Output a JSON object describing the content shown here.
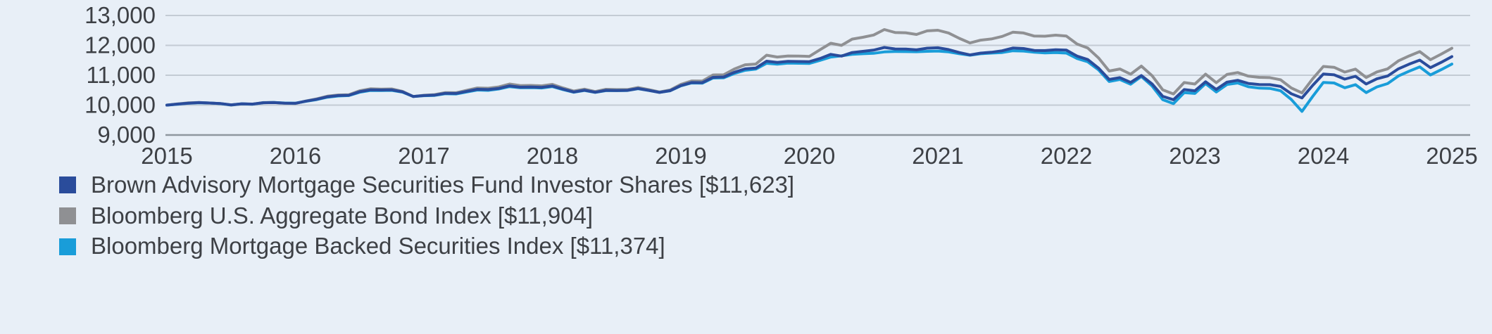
{
  "colors": {
    "background": "#e8eff7",
    "text": "#3d4045",
    "grid": "#c3cbd4",
    "axis": "#8f979f"
  },
  "chart_data": {
    "type": "line",
    "title": "",
    "xlabel": "",
    "ylabel": "",
    "grid": "horizontal",
    "legend_position": "bottom-left",
    "x_start": 2015,
    "x_end": 2025,
    "frequency": "monthly",
    "ylim": [
      9000,
      13000
    ],
    "x_ticks": [
      "2015",
      "2016",
      "2017",
      "2018",
      "2019",
      "2020",
      "2021",
      "2022",
      "2023",
      "2024",
      "2025"
    ],
    "y_ticks": [
      {
        "value": 13000,
        "label": "13,000"
      },
      {
        "value": 12000,
        "label": "12,000"
      },
      {
        "value": 11000,
        "label": "11,000"
      },
      {
        "value": 10000,
        "label": "10,000"
      },
      {
        "value": 9000,
        "label": "9,000"
      }
    ],
    "series": [
      {
        "name": "Brown Advisory Mortgage Securities Fund Investor Shares [$11,623]",
        "color": "#2a4c9b",
        "final_value": 11623,
        "values": [
          10000,
          10035,
          10065,
          10085,
          10070,
          10055,
          10010,
          10045,
          10035,
          10080,
          10085,
          10065,
          10060,
          10135,
          10195,
          10280,
          10320,
          10330,
          10450,
          10510,
          10505,
          10510,
          10445,
          10290,
          10320,
          10335,
          10395,
          10390,
          10460,
          10530,
          10520,
          10560,
          10645,
          10600,
          10605,
          10595,
          10640,
          10535,
          10440,
          10500,
          10430,
          10495,
          10490,
          10495,
          10555,
          10495,
          10425,
          10485,
          10655,
          10755,
          10750,
          10930,
          10940,
          11100,
          11215,
          11240,
          11470,
          11430,
          11465,
          11460,
          11455,
          11560,
          11700,
          11640,
          11760,
          11800,
          11840,
          11930,
          11880,
          11875,
          11850,
          11905,
          11920,
          11860,
          11760,
          11680,
          11740,
          11770,
          11820,
          11910,
          11895,
          11830,
          11825,
          11855,
          11840,
          11640,
          11525,
          11240,
          10860,
          10920,
          10760,
          10990,
          10710,
          10295,
          10180,
          10520,
          10480,
          10780,
          10525,
          10770,
          10830,
          10725,
          10690,
          10685,
          10625,
          10380,
          10240,
          10660,
          11040,
          11015,
          10870,
          10965,
          10705,
          10880,
          10975,
          11215,
          11370,
          11505,
          11255,
          11430,
          11623
        ]
      },
      {
        "name": "Bloomberg U.S. Aggregate Bond Index [$11,904]",
        "color": "#8f9093",
        "final_value": 11904,
        "values": [
          10000,
          10040,
          10075,
          10090,
          10070,
          10050,
          10000,
          10040,
          10030,
          10085,
          10090,
          10065,
          10055,
          10140,
          10210,
          10300,
          10340,
          10345,
          10480,
          10545,
          10535,
          10540,
          10460,
          10290,
          10330,
          10350,
          10420,
          10415,
          10495,
          10575,
          10565,
          10610,
          10705,
          10655,
          10660,
          10645,
          10695,
          10575,
          10470,
          10535,
          10455,
          10530,
          10520,
          10520,
          10590,
          10520,
          10440,
          10505,
          10695,
          10810,
          10805,
          11010,
          11015,
          11210,
          11350,
          11375,
          11670,
          11610,
          11645,
          11640,
          11630,
          11855,
          12070,
          12000,
          12210,
          12270,
          12345,
          12530,
          12430,
          12420,
          12365,
          12485,
          12505,
          12415,
          12235,
          12080,
          12175,
          12215,
          12300,
          12440,
          12415,
          12310,
          12305,
          12340,
          12310,
          12045,
          11910,
          11580,
          11140,
          11210,
          11035,
          11305,
          10985,
          10510,
          10375,
          10755,
          10705,
          11035,
          10750,
          11025,
          11090,
          10970,
          10930,
          10920,
          10850,
          10575,
          10410,
          10880,
          11295,
          11265,
          11105,
          11205,
          10925,
          11110,
          11215,
          11480,
          11645,
          11790,
          11520,
          11705,
          11904
        ]
      },
      {
        "name": "Bloomberg Mortgage Backed Securities Index [$11,374]",
        "color": "#199dd9",
        "final_value": 11374,
        "values": [
          10000,
          10030,
          10060,
          10080,
          10070,
          10050,
          10005,
          10045,
          10030,
          10080,
          10090,
          10070,
          10065,
          10130,
          10185,
          10265,
          10305,
          10320,
          10430,
          10490,
          10490,
          10495,
          10435,
          10290,
          10315,
          10325,
          10380,
          10375,
          10440,
          10505,
          10495,
          10540,
          10620,
          10580,
          10585,
          10575,
          10620,
          10520,
          10430,
          10490,
          10425,
          10485,
          10485,
          10490,
          10550,
          10490,
          10425,
          10480,
          10645,
          10740,
          10735,
          10905,
          10915,
          11060,
          11165,
          11205,
          11400,
          11370,
          11405,
          11400,
          11395,
          11500,
          11610,
          11650,
          11700,
          11720,
          11735,
          11780,
          11795,
          11790,
          11785,
          11800,
          11810,
          11780,
          11720,
          11670,
          11720,
          11740,
          11760,
          11820,
          11810,
          11770,
          11745,
          11760,
          11740,
          11560,
          11450,
          11180,
          10790,
          10860,
          10700,
          10960,
          10640,
          10180,
          10050,
          10420,
          10390,
          10720,
          10440,
          10690,
          10740,
          10615,
          10570,
          10560,
          10480,
          10190,
          9790,
          10290,
          10760,
          10740,
          10580,
          10685,
          10420,
          10610,
          10720,
          10975,
          11135,
          11280,
          11010,
          11185,
          11374
        ]
      }
    ],
    "draw_order": [
      1,
      2,
      0
    ]
  }
}
